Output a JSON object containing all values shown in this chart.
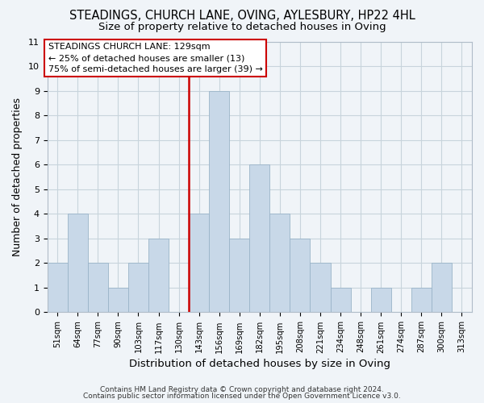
{
  "title": "STEADINGS, CHURCH LANE, OVING, AYLESBURY, HP22 4HL",
  "subtitle": "Size of property relative to detached houses in Oving",
  "xlabel": "Distribution of detached houses by size in Oving",
  "ylabel": "Number of detached properties",
  "footer_line1": "Contains HM Land Registry data © Crown copyright and database right 2024.",
  "footer_line2": "Contains public sector information licensed under the Open Government Licence v3.0.",
  "bin_labels": [
    "51sqm",
    "64sqm",
    "77sqm",
    "90sqm",
    "103sqm",
    "117sqm",
    "130sqm",
    "143sqm",
    "156sqm",
    "169sqm",
    "182sqm",
    "195sqm",
    "208sqm",
    "221sqm",
    "234sqm",
    "248sqm",
    "261sqm",
    "274sqm",
    "287sqm",
    "300sqm",
    "313sqm"
  ],
  "bar_heights": [
    2,
    4,
    2,
    1,
    2,
    3,
    0,
    4,
    9,
    3,
    6,
    4,
    3,
    2,
    1,
    0,
    1,
    0,
    1,
    2,
    0
  ],
  "bar_color": "#c8d8e8",
  "bar_edge_color": "#9ab4c8",
  "reference_line_color": "#cc0000",
  "reference_line_bin_index": 6,
  "ylim": [
    0,
    11
  ],
  "yticks": [
    0,
    1,
    2,
    3,
    4,
    5,
    6,
    7,
    8,
    9,
    10,
    11
  ],
  "annotation_box_title": "STEADINGS CHURCH LANE: 129sqm",
  "annotation_line1": "← 25% of detached houses are smaller (13)",
  "annotation_line2": "75% of semi-detached houses are larger (39) →",
  "grid_color": "#c8d4dc",
  "bg_color": "#f0f4f8",
  "title_fontsize": 10.5,
  "subtitle_fontsize": 9.5
}
